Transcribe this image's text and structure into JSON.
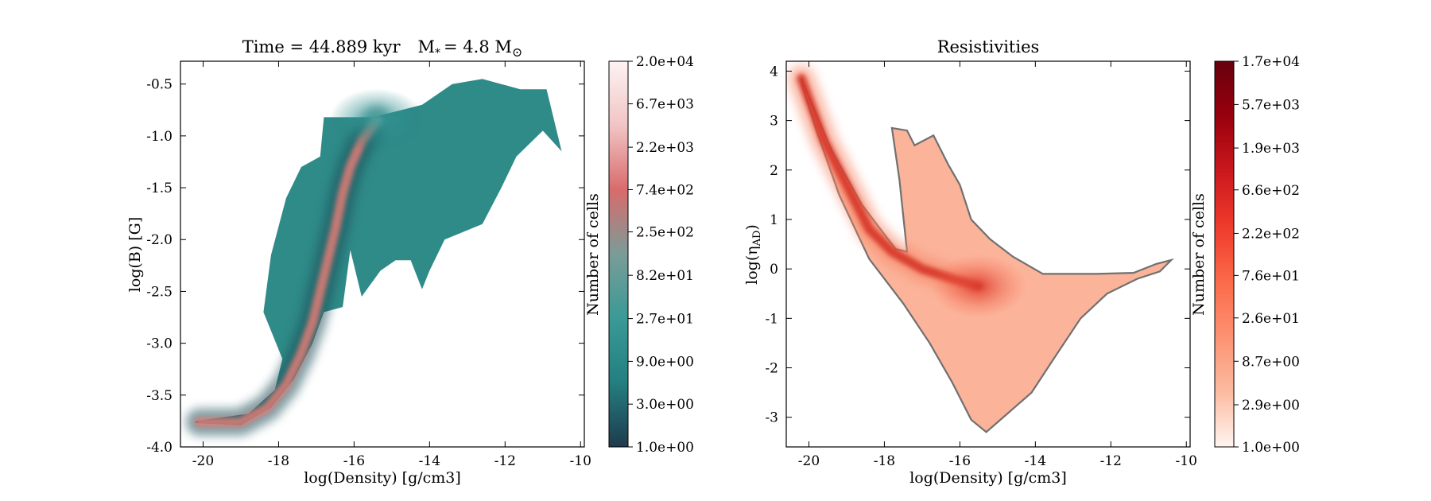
{
  "chart_data": [
    {
      "type": "heatmap",
      "title": "Time = 44.889 kyr    M* = 4.8 M⊙",
      "title_parts": {
        "time": "Time = 44.889 kyr",
        "mass": "M",
        "mass_sub": "*",
        "mass_value": "= 4.8 M",
        "mass_unit_symbol": "⊙"
      },
      "xlabel": "log(Density) [g/cm3]",
      "ylabel": "log(B) [G]",
      "xlim": [
        -20.6,
        -9.9
      ],
      "ylim": [
        -4.0,
        -0.28
      ],
      "xticks": [
        -20,
        -18,
        -16,
        -14,
        -12,
        -10
      ],
      "xtick_labels": [
        "-20",
        "-18",
        "-16",
        "-14",
        "-12",
        "-10"
      ],
      "yticks": [
        -4.0,
        -3.5,
        -3.0,
        -2.5,
        -2.0,
        -1.5,
        -1.0,
        -0.5
      ],
      "ytick_labels": [
        "-4.0",
        "-3.5",
        "-3.0",
        "-2.5",
        "-2.0",
        "-1.5",
        "-1.0",
        "-0.5"
      ],
      "colorbar": {
        "label": "Number of cells",
        "scale": "log",
        "range": [
          1.0,
          20000
        ],
        "tick_labels": [
          "1.0e+00",
          "3.0e+00",
          "9.0e+00",
          "2.7e+01",
          "8.2e+01",
          "2.5e+02",
          "7.4e+02",
          "2.2e+03",
          "6.7e+03",
          "2.0e+04"
        ],
        "colors": [
          "#1f3a4d",
          "#237f80",
          "#3a9a96",
          "#7a9c98",
          "#d96b6b",
          "#f2c4c4",
          "#fdf3f3"
        ]
      },
      "distribution_outline": [
        [
          -20.2,
          -3.77
        ],
        [
          -19.0,
          -3.79
        ],
        [
          -18.2,
          -3.62
        ],
        [
          -17.6,
          -3.35
        ],
        [
          -17.1,
          -3.0
        ],
        [
          -16.8,
          -2.7
        ],
        [
          -16.3,
          -2.65
        ],
        [
          -16.1,
          -2.1
        ],
        [
          -15.8,
          -2.55
        ],
        [
          -15.3,
          -2.3
        ],
        [
          -14.9,
          -2.2
        ],
        [
          -14.5,
          -2.2
        ],
        [
          -14.2,
          -2.48
        ],
        [
          -14.0,
          -2.3
        ],
        [
          -13.6,
          -2.0
        ],
        [
          -12.6,
          -1.85
        ],
        [
          -12.1,
          -1.5
        ],
        [
          -11.7,
          -1.2
        ],
        [
          -11.0,
          -0.95
        ],
        [
          -10.5,
          -1.15
        ],
        [
          -10.9,
          -0.55
        ],
        [
          -11.6,
          -0.55
        ],
        [
          -12.6,
          -0.45
        ],
        [
          -13.4,
          -0.5
        ],
        [
          -14.2,
          -0.7
        ],
        [
          -15.5,
          -0.82
        ],
        [
          -16.8,
          -0.82
        ],
        [
          -16.9,
          -1.2
        ],
        [
          -17.4,
          -1.3
        ],
        [
          -17.8,
          -1.6
        ],
        [
          -18.2,
          -2.15
        ],
        [
          -18.4,
          -2.7
        ],
        [
          -17.9,
          -3.15
        ],
        [
          -18.1,
          -3.45
        ],
        [
          -18.8,
          -3.68
        ],
        [
          -20.2,
          -3.75
        ]
      ],
      "ridge": [
        [
          -20.1,
          -3.76
        ],
        [
          -19.0,
          -3.76
        ],
        [
          -18.3,
          -3.62
        ],
        [
          -17.8,
          -3.4
        ],
        [
          -17.4,
          -3.1
        ],
        [
          -17.1,
          -2.8
        ],
        [
          -16.9,
          -2.5
        ],
        [
          -16.7,
          -2.2
        ],
        [
          -16.5,
          -1.9
        ],
        [
          -16.3,
          -1.55
        ],
        [
          -16.1,
          -1.3
        ],
        [
          -15.8,
          -1.05
        ],
        [
          -15.4,
          -0.85
        ]
      ]
    },
    {
      "type": "heatmap",
      "title": "Resistivities",
      "xlabel": "log(Density) [g/cm3]",
      "ylabel": "log(ηAD)",
      "ylabel_parts": {
        "prefix": "log(η",
        "sub": "AD",
        "suffix": ")"
      },
      "xlim": [
        -20.6,
        -9.9
      ],
      "ylim": [
        -3.6,
        4.2
      ],
      "xticks": [
        -20,
        -18,
        -16,
        -14,
        -12,
        -10
      ],
      "xtick_labels": [
        "-20",
        "-18",
        "-16",
        "-14",
        "-12",
        "-10"
      ],
      "yticks": [
        -3,
        -2,
        -1,
        0,
        1,
        2,
        3,
        4
      ],
      "ytick_labels": [
        "-3",
        "-2",
        "-1",
        "0",
        "1",
        "2",
        "3",
        "4"
      ],
      "colorbar": {
        "label": "Number of cells",
        "scale": "log",
        "range": [
          1.0,
          17000
        ],
        "tick_labels": [
          "1.0e+00",
          "2.9e+00",
          "8.7e+00",
          "2.6e+01",
          "7.6e+01",
          "2.2e+02",
          "6.6e+02",
          "1.9e+03",
          "5.7e+03",
          "1.7e+04"
        ],
        "colors": [
          "#fff5f0",
          "#fcbba1",
          "#fc9272",
          "#fb6a4a",
          "#ef3b2c",
          "#cb181d",
          "#99000d",
          "#67000d"
        ]
      },
      "distribution_outline": [
        [
          -20.2,
          3.85
        ],
        [
          -19.4,
          2.4
        ],
        [
          -18.6,
          1.3
        ],
        [
          -17.7,
          0.4
        ],
        [
          -17.4,
          0.35
        ],
        [
          -17.6,
          1.8
        ],
        [
          -17.8,
          2.85
        ],
        [
          -17.4,
          2.8
        ],
        [
          -17.2,
          2.5
        ],
        [
          -16.7,
          2.7
        ],
        [
          -16.3,
          2.1
        ],
        [
          -16.0,
          1.7
        ],
        [
          -15.7,
          1.0
        ],
        [
          -15.2,
          0.6
        ],
        [
          -14.6,
          0.25
        ],
        [
          -13.8,
          -0.1
        ],
        [
          -12.4,
          -0.1
        ],
        [
          -11.4,
          -0.08
        ],
        [
          -10.8,
          0.1
        ],
        [
          -10.4,
          0.18
        ],
        [
          -10.7,
          -0.05
        ],
        [
          -11.3,
          -0.2
        ],
        [
          -12.1,
          -0.5
        ],
        [
          -12.8,
          -1.0
        ],
        [
          -13.5,
          -1.8
        ],
        [
          -14.1,
          -2.5
        ],
        [
          -14.7,
          -2.9
        ],
        [
          -15.3,
          -3.3
        ],
        [
          -15.7,
          -3.05
        ],
        [
          -16.2,
          -2.3
        ],
        [
          -16.8,
          -1.5
        ],
        [
          -17.5,
          -0.7
        ],
        [
          -18.4,
          0.2
        ],
        [
          -19.2,
          1.5
        ],
        [
          -19.8,
          2.8
        ],
        [
          -20.2,
          3.75
        ]
      ],
      "ridge": [
        [
          -20.2,
          3.85
        ],
        [
          -19.6,
          2.6
        ],
        [
          -19.0,
          1.7
        ],
        [
          -18.4,
          0.8
        ],
        [
          -17.8,
          0.35
        ],
        [
          -17.0,
          0.0
        ],
        [
          -16.2,
          -0.2
        ],
        [
          -15.5,
          -0.35
        ]
      ]
    }
  ]
}
